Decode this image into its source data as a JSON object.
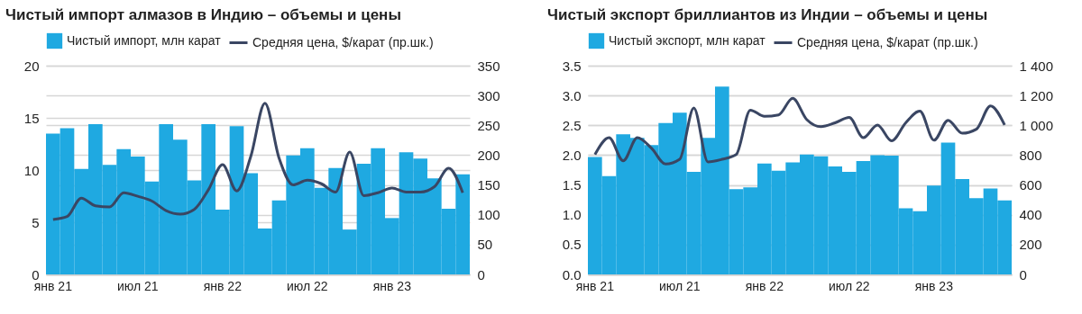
{
  "chart_data": [
    {
      "type": "bar",
      "title": "Чистый импорт алмазов в Индию – объемы и цены",
      "categories": [
        "янв 21",
        null,
        null,
        null,
        null,
        null,
        "июл 21",
        null,
        null,
        null,
        null,
        null,
        "янв 22",
        null,
        null,
        null,
        null,
        null,
        "июл 22",
        null,
        null,
        null,
        null,
        null,
        "янв 23",
        null,
        null,
        null,
        null,
        null
      ],
      "series": [
        {
          "name": "Чистый импорт, млн карат",
          "color": "#1fa9e1",
          "values": [
            13.5,
            14.0,
            10.1,
            14.4,
            10.5,
            12.0,
            11.3,
            8.9,
            14.4,
            12.9,
            9.0,
            14.4,
            6.2,
            14.2,
            9.7,
            4.4,
            7.1,
            11.4,
            12.1,
            8.3,
            10.2,
            4.3,
            10.6,
            12.1,
            5.4,
            11.7,
            11.1,
            9.2,
            6.3,
            9.6
          ]
        },
        {
          "name": "Средняя цена, $/карат (пр.шк.)",
          "type": "line",
          "axis": "y2",
          "color": "#3a4663",
          "values": [
            92,
            97,
            128,
            115,
            113,
            137,
            131,
            123,
            107,
            101,
            109,
            142,
            184,
            140,
            198,
            287,
            195,
            150,
            158,
            152,
            138,
            205,
            132,
            137,
            145,
            138,
            138,
            147,
            178,
            137
          ]
        }
      ],
      "ylim": [
        0,
        20
      ],
      "yticks": [
        0,
        5,
        10,
        15,
        20
      ],
      "y2lim": [
        0,
        350
      ],
      "y2ticks": [
        0,
        50,
        100,
        150,
        200,
        250,
        300,
        350
      ],
      "grid": "y",
      "legend": "top"
    },
    {
      "type": "bar",
      "title": "Чистый экспорт бриллиантов из Индии – объемы и цены",
      "categories": [
        "янв 21",
        null,
        null,
        null,
        null,
        null,
        "июл 21",
        null,
        null,
        null,
        null,
        null,
        "янв 22",
        null,
        null,
        null,
        null,
        null,
        "июл 22",
        null,
        null,
        null,
        null,
        null,
        "янв 23",
        null,
        null,
        null,
        null,
        null
      ],
      "series": [
        {
          "name": "Чистый экспорт, млн карат",
          "color": "#1fa9e1",
          "values": [
            1.97,
            1.65,
            2.35,
            2.29,
            2.17,
            2.54,
            2.71,
            1.72,
            2.29,
            3.15,
            1.43,
            1.46,
            1.86,
            1.74,
            1.88,
            2.01,
            1.98,
            1.81,
            1.72,
            1.9,
            2.0,
            1.99,
            1.11,
            1.06,
            1.49,
            2.21,
            1.6,
            1.28,
            1.44,
            1.24
          ]
        },
        {
          "name": "Средняя цена, $/карат (пр.шк.)",
          "type": "line",
          "axis": "y2",
          "color": "#3a4663",
          "values": [
            804,
            917,
            762,
            917,
            847,
            740,
            772,
            1117,
            755,
            772,
            804,
            1102,
            1060,
            1070,
            1181,
            1038,
            991,
            1017,
            1053,
            917,
            1002,
            896,
            1017,
            1096,
            900,
            1034,
            947,
            974,
            1130,
            1002
          ]
        }
      ],
      "ylim": [
        0,
        3.5
      ],
      "yticks": [
        {
          "value": 0,
          "label": "0.0"
        },
        {
          "value": 0.5,
          "label": "0.5"
        },
        {
          "value": 1,
          "label": "1.0"
        },
        {
          "value": 1.5,
          "label": "1.5"
        },
        {
          "value": 2,
          "label": "2.0"
        },
        {
          "value": 2.5,
          "label": "2.5"
        },
        {
          "value": 3,
          "label": "3.0"
        },
        {
          "value": 3.5,
          "label": "3.5"
        }
      ],
      "y2lim": [
        0,
        1400
      ],
      "y2ticks": [
        0,
        200,
        400,
        600,
        800,
        {
          "value": 1000,
          "label": "1 000"
        },
        {
          "value": 1200,
          "label": "1 200"
        },
        {
          "value": 1400,
          "label": "1 400"
        }
      ],
      "grid": "y",
      "legend": "top"
    }
  ]
}
